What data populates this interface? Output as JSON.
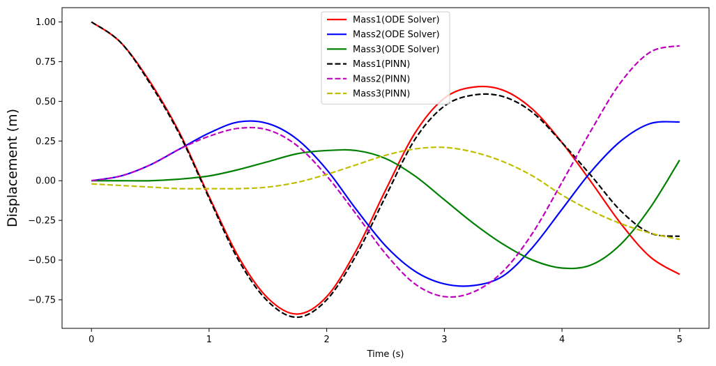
{
  "chart_data": {
    "type": "line",
    "title": "",
    "xlabel": "Time (s)",
    "ylabel": "Displacement (m)",
    "xlim": [
      -0.25,
      5.25
    ],
    "ylim": [
      -0.93,
      1.09
    ],
    "xticks": [
      0,
      1,
      2,
      3,
      4,
      5
    ],
    "xtick_labels": [
      "0",
      "1",
      "2",
      "3",
      "4",
      "5"
    ],
    "yticks": [
      1.0,
      0.75,
      0.5,
      0.25,
      0.0,
      -0.25,
      -0.5,
      -0.75
    ],
    "ytick_labels": [
      "1.00",
      "0.75",
      "0.50",
      "0.25",
      "0.00",
      "−0.25",
      "−0.50",
      "−0.75"
    ],
    "grid": false,
    "legend_position": "upper-center",
    "x": [
      0,
      0.25,
      0.5,
      0.75,
      1.0,
      1.25,
      1.5,
      1.75,
      2.0,
      2.25,
      2.5,
      2.75,
      3.0,
      3.25,
      3.5,
      3.75,
      4.0,
      4.25,
      4.5,
      4.75,
      5.0
    ],
    "series": [
      {
        "name": "Mass1(ODE Solver)",
        "color": "#ff0000",
        "style": "solid",
        "values": [
          1.0,
          0.87,
          0.62,
          0.3,
          -0.1,
          -0.48,
          -0.74,
          -0.84,
          -0.73,
          -0.44,
          -0.06,
          0.3,
          0.52,
          0.59,
          0.57,
          0.45,
          0.24,
          -0.01,
          -0.27,
          -0.48,
          -0.59
        ]
      },
      {
        "name": "Mass2(ODE Solver)",
        "color": "#0000ff",
        "style": "solid",
        "values": [
          0.0,
          0.03,
          0.1,
          0.2,
          0.3,
          0.37,
          0.36,
          0.26,
          0.07,
          -0.18,
          -0.41,
          -0.57,
          -0.65,
          -0.66,
          -0.6,
          -0.42,
          -0.18,
          0.06,
          0.25,
          0.36,
          0.37
        ]
      },
      {
        "name": "Mass3(ODE Solver)",
        "color": "#008000",
        "style": "solid",
        "values": [
          0.0,
          0.0,
          0.0,
          0.01,
          0.03,
          0.07,
          0.12,
          0.17,
          0.19,
          0.19,
          0.14,
          0.03,
          -0.12,
          -0.27,
          -0.4,
          -0.5,
          -0.55,
          -0.53,
          -0.4,
          -0.17,
          0.13
        ]
      },
      {
        "name": "Mass1(PINN)",
        "color": "#000000",
        "style": "dashed",
        "values": [
          1.0,
          0.87,
          0.61,
          0.29,
          -0.11,
          -0.5,
          -0.76,
          -0.86,
          -0.75,
          -0.47,
          -0.1,
          0.26,
          0.47,
          0.54,
          0.53,
          0.43,
          0.24,
          0.03,
          -0.19,
          -0.33,
          -0.35
        ]
      },
      {
        "name": "Mass2(PINN)",
        "color": "#bf00bf",
        "style": "dashed",
        "values": [
          0.0,
          0.03,
          0.1,
          0.2,
          0.28,
          0.33,
          0.32,
          0.22,
          0.03,
          -0.21,
          -0.46,
          -0.65,
          -0.73,
          -0.7,
          -0.57,
          -0.33,
          -0.01,
          0.32,
          0.62,
          0.81,
          0.85
        ]
      },
      {
        "name": "Mass3(PINN)",
        "color": "#bfbf00",
        "style": "dashed",
        "values": [
          -0.02,
          -0.03,
          -0.04,
          -0.05,
          -0.05,
          -0.05,
          -0.04,
          -0.01,
          0.04,
          0.1,
          0.16,
          0.2,
          0.21,
          0.18,
          0.12,
          0.03,
          -0.09,
          -0.19,
          -0.27,
          -0.33,
          -0.37
        ]
      }
    ]
  }
}
